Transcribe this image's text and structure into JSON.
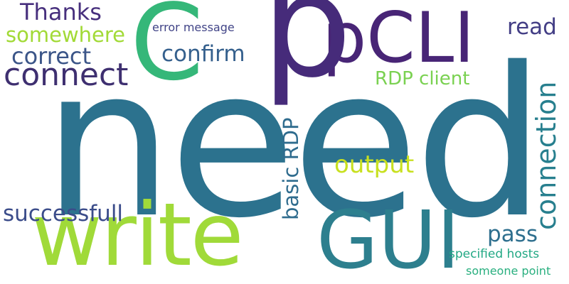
{
  "words": [
    {
      "text": "need",
      "color": "#2c728e"
    },
    {
      "text": "write",
      "color": "#a0da39"
    },
    {
      "text": "GUI",
      "color": "#2d7f8e"
    },
    {
      "text": "pCLI",
      "color": "#482576"
    },
    {
      "text": "p",
      "color": "#462b7a"
    },
    {
      "text": "C",
      "color": "#35b779"
    },
    {
      "text": "connect",
      "color": "#3e2f70"
    },
    {
      "text": "Thanks",
      "color": "#472f7d"
    },
    {
      "text": "somewhere",
      "color": "#a2da37"
    },
    {
      "text": "correct",
      "color": "#3b5588"
    },
    {
      "text": "confirm",
      "color": "#35608d"
    },
    {
      "text": "error message",
      "color": "#414487"
    },
    {
      "text": "read",
      "color": "#433e85"
    },
    {
      "text": "RDP client",
      "color": "#7ad151"
    },
    {
      "text": "output",
      "color": "#c8e020"
    },
    {
      "text": "basic RDP",
      "color": "#2f6c8e"
    },
    {
      "text": "connection",
      "color": "#277f8e"
    },
    {
      "text": "successfull",
      "color": "#3b4c8a"
    },
    {
      "text": "pass",
      "color": "#2e6f8e"
    },
    {
      "text": "specified hosts",
      "color": "#22a884"
    },
    {
      "text": "someone point",
      "color": "#29af7f"
    }
  ]
}
